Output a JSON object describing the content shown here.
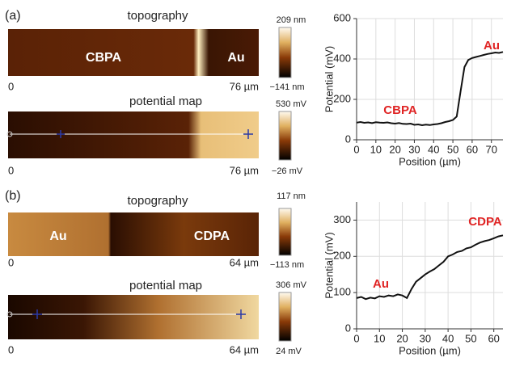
{
  "panels": [
    {
      "label": "(a)",
      "images": [
        {
          "title": "topography",
          "labels": [
            "CBPA",
            "Au"
          ],
          "x_start": "0",
          "x_end": "76 µm",
          "scale_max": "209 nm",
          "scale_min": "−141 nm"
        },
        {
          "title": "potential map",
          "x_start": "0",
          "x_end": "76 µm",
          "scale_max": "530 mV",
          "scale_min": "−26 mV"
        }
      ]
    },
    {
      "label": "(b)",
      "images": [
        {
          "title": "topography",
          "labels": [
            "Au",
            "CDPA"
          ],
          "x_start": "0",
          "x_end": "64 µm",
          "scale_max": "117 nm",
          "scale_min": "−113 nm"
        },
        {
          "title": "potential map",
          "x_start": "0",
          "x_end": "64 µm",
          "scale_max": "306 mV",
          "scale_min": "24 mV"
        }
      ]
    }
  ],
  "chart_data": [
    {
      "type": "line",
      "xlabel": "Position (µm)",
      "ylabel": "Potential (mV)",
      "grid": true,
      "color": "#111111",
      "xlim": [
        0,
        76
      ],
      "ylim": [
        0,
        600
      ],
      "xticks": [
        0,
        10,
        20,
        30,
        40,
        50,
        60,
        70
      ],
      "yticks": [
        0,
        200,
        400,
        600
      ],
      "annotations": [
        {
          "text": "CBPA"
        },
        {
          "text": "Au"
        }
      ],
      "x": [
        0,
        2,
        4,
        6,
        8,
        10,
        12,
        14,
        16,
        18,
        20,
        22,
        24,
        26,
        28,
        30,
        32,
        34,
        36,
        38,
        40,
        42,
        44,
        46,
        48,
        50,
        52,
        54,
        56,
        58,
        60,
        62,
        64,
        66,
        68,
        70,
        72,
        74,
        76
      ],
      "values": [
        85,
        88,
        84,
        86,
        83,
        87,
        85,
        84,
        86,
        82,
        80,
        83,
        79,
        78,
        80,
        74,
        76,
        72,
        75,
        73,
        76,
        78,
        82,
        88,
        92,
        98,
        115,
        240,
        360,
        395,
        405,
        410,
        415,
        420,
        425,
        428,
        432,
        430,
        435
      ]
    },
    {
      "type": "line",
      "xlabel": "Position (µm)",
      "ylabel": "Potential (mV)",
      "grid": true,
      "color": "#111111",
      "xlim": [
        0,
        64
      ],
      "ylim": [
        0,
        350
      ],
      "xticks": [
        0,
        10,
        20,
        30,
        40,
        50,
        60
      ],
      "yticks": [
        0,
        100,
        200,
        300
      ],
      "annotations": [
        {
          "text": "Au"
        },
        {
          "text": "CDPA"
        }
      ],
      "x": [
        0,
        2,
        4,
        6,
        8,
        10,
        12,
        14,
        16,
        18,
        20,
        22,
        24,
        26,
        28,
        30,
        32,
        34,
        36,
        38,
        40,
        42,
        44,
        46,
        48,
        50,
        52,
        54,
        56,
        58,
        60,
        62,
        64
      ],
      "values": [
        85,
        88,
        82,
        86,
        84,
        90,
        88,
        92,
        90,
        95,
        92,
        85,
        110,
        130,
        140,
        150,
        158,
        165,
        175,
        185,
        200,
        205,
        212,
        215,
        222,
        225,
        232,
        238,
        242,
        245,
        250,
        255,
        258
      ]
    }
  ]
}
